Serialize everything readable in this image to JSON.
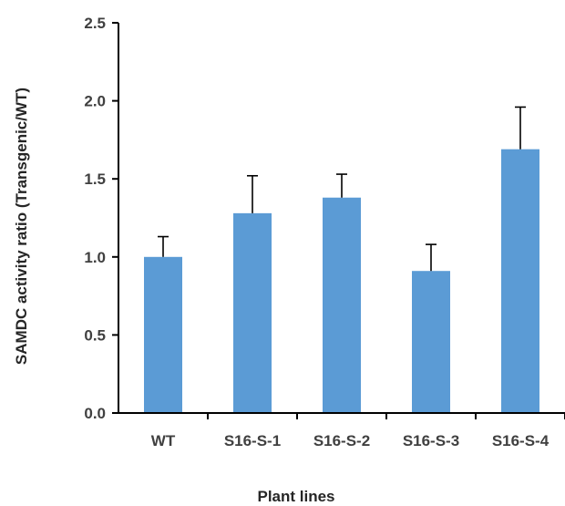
{
  "chart_data": {
    "type": "bar",
    "title": "",
    "xlabel": "Plant lines",
    "ylabel": "SAMDC activity ratio (Transgenic/WT)",
    "categories": [
      "WT",
      "S16-S-1",
      "S16-S-2",
      "S16-S-3",
      "S16-S-4"
    ],
    "values": [
      1.0,
      1.28,
      1.38,
      0.91,
      1.69
    ],
    "error_plus": [
      0.13,
      0.24,
      0.15,
      0.17,
      0.27
    ],
    "ylim": [
      0,
      2.5
    ],
    "yticks": [
      "0.0",
      "0.5",
      "1.0",
      "1.5",
      "2.0",
      "2.5"
    ],
    "bar_color": "#5B9BD5",
    "grid": false,
    "legend": "none"
  }
}
